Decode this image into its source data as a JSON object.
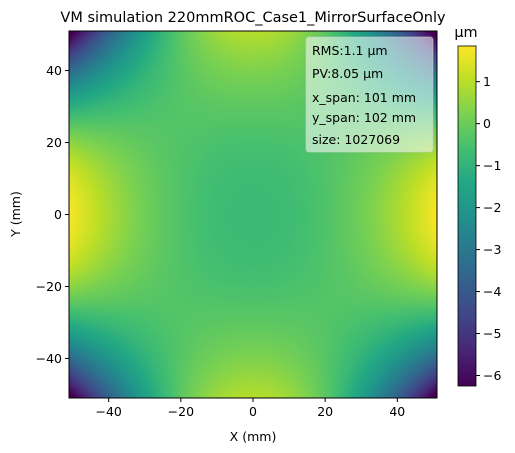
{
  "chart_data": {
    "type": "heatmap",
    "title": "VM simulation 220mmROC_Case1_MirrorSurfaceOnly",
    "xlabel": "X (mm)",
    "ylabel": "Y (mm)",
    "xlim": [
      -51,
      51
    ],
    "ylim": [
      -51,
      51
    ],
    "x_ticks": [
      -40,
      -20,
      0,
      20,
      40
    ],
    "y_ticks": [
      -40,
      -20,
      0,
      20,
      40
    ],
    "x_tick_labels": [
      "−40",
      "−20",
      "0",
      "20",
      "40"
    ],
    "y_tick_labels": [
      "−40",
      "−20",
      "0",
      "20",
      "40"
    ],
    "colorbar": {
      "label": "μm",
      "vmin": -6.25,
      "vmax": 1.85,
      "ticks": [
        1,
        0,
        -1,
        -2,
        -3,
        -4,
        -5,
        -6
      ],
      "tick_labels": [
        "1",
        "0",
        "−1",
        "−2",
        "−3",
        "−4",
        "−5",
        "−6"
      ],
      "colormap": "viridis"
    },
    "surface": {
      "description_values": {
        "center": -0.8,
        "left_right_edges_mid": 1.7,
        "top_bottom_edges_mid": 0.9,
        "corners": -6.2
      }
    },
    "stats": [
      "RMS:1.1 μm",
      "PV:8.05 μm",
      "x_span: 101 mm",
      "y_span: 102 mm",
      "size: 1027069"
    ]
  }
}
